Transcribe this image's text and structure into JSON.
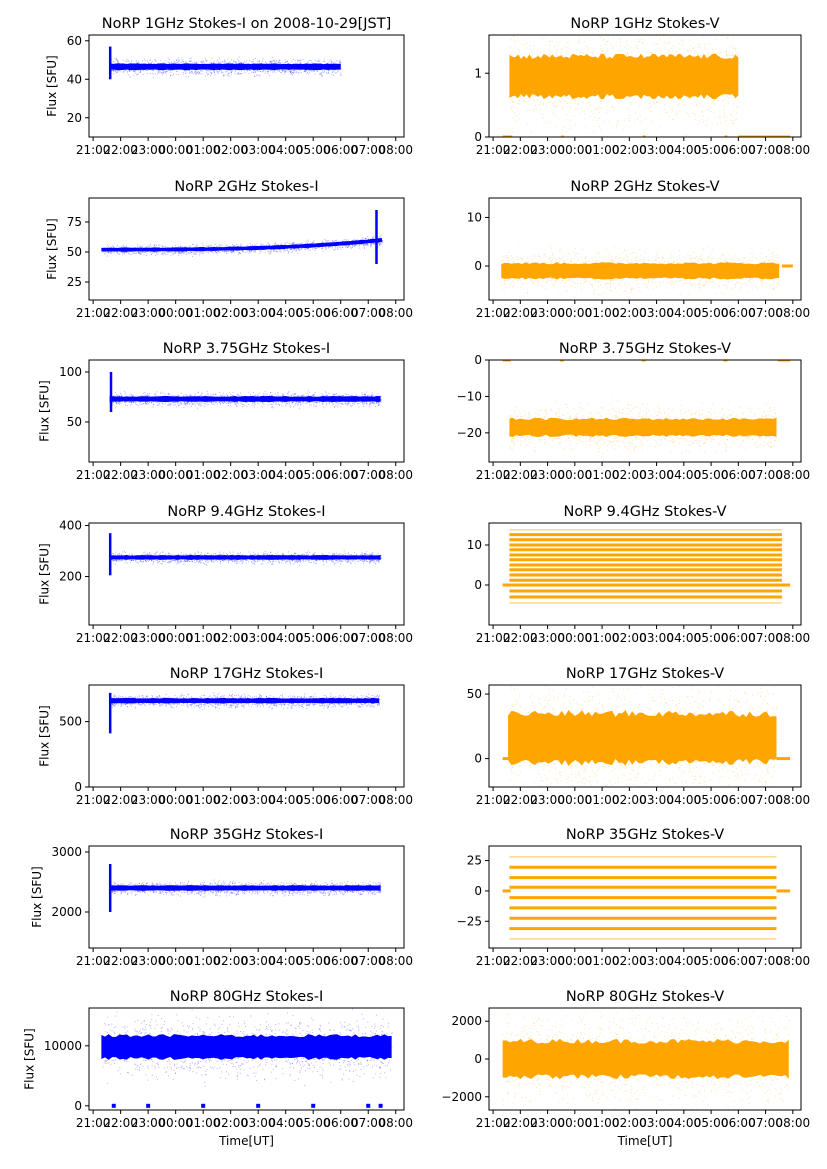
{
  "figure": {
    "title_prefix": "NoRP",
    "date_note": "on 2008-10-29[JST]",
    "xlabel": "Time[UT]",
    "ylabel": "Flux [SFU]",
    "colors": {
      "stokes_i": "#0000ff",
      "stokes_v": "#ffa500"
    }
  },
  "chart_data": [
    {
      "type": "scatter",
      "title": "NoRP 1GHz Stokes-I on 2008-10-29[JST]",
      "xlabel": "",
      "ylabel": "Flux [SFU]",
      "ylim": [
        10,
        63
      ],
      "yticks": [
        20,
        40,
        60
      ],
      "xticks": [
        "21:00",
        "22:00",
        "23:00",
        "00:00",
        "01:00",
        "02:00",
        "03:00",
        "04:00",
        "05:00",
        "06:00",
        "07:00",
        "08:00"
      ],
      "xlim_hours": [
        20.85,
        32.3
      ],
      "color": "#0000ff",
      "series": [
        {
          "name": "Stokes-I",
          "start": 21.6,
          "end": 30.0,
          "baseline": 46.5,
          "spread": 1.5,
          "spike": {
            "at": 21.62,
            "max": 57,
            "min": 40
          }
        }
      ]
    },
    {
      "type": "scatter",
      "title": "NoRP 1GHz Stokes-V",
      "xlabel": "",
      "ylabel": "",
      "ylim": [
        0,
        1.6
      ],
      "yticks": [
        0,
        1
      ],
      "xticks": [
        "21:00",
        "22:00",
        "23:00",
        "00:00",
        "01:00",
        "02:00",
        "03:00",
        "04:00",
        "05:00",
        "06:00",
        "07:00",
        "08:00"
      ],
      "xlim_hours": [
        20.85,
        32.3
      ],
      "color": "#ffa500",
      "series": [
        {
          "name": "Stokes-V",
          "start": 21.6,
          "end": 30.0,
          "baseline": 0.95,
          "spread": 0.3
        }
      ],
      "zero_segments": [
        [
          21.35,
          21.7
        ],
        [
          23.5,
          23.6
        ],
        [
          26.5,
          26.6
        ],
        [
          29.5,
          29.6
        ],
        [
          30.0,
          31.9
        ]
      ]
    },
    {
      "type": "scatter",
      "title": "NoRP 2GHz Stokes-I",
      "xlabel": "",
      "ylabel": "Flux [SFU]",
      "ylim": [
        10,
        95
      ],
      "yticks": [
        25,
        50,
        75
      ],
      "xticks": [
        "21:00",
        "22:00",
        "23:00",
        "00:00",
        "01:00",
        "02:00",
        "03:00",
        "04:00",
        "05:00",
        "06:00",
        "07:00",
        "08:00"
      ],
      "xlim_hours": [
        20.85,
        32.3
      ],
      "color": "#0000ff",
      "series": [
        {
          "name": "Stokes-I",
          "start": 21.3,
          "end": 31.5,
          "baseline": 52,
          "baseline_end": 60,
          "spread": 1.5,
          "spike": {
            "at": 31.3,
            "max": 85,
            "min": 40
          }
        }
      ]
    },
    {
      "type": "scatter",
      "title": "NoRP 2GHz Stokes-V",
      "xlabel": "",
      "ylabel": "",
      "ylim": [
        -7,
        14
      ],
      "yticks": [
        0,
        10
      ],
      "xticks": [
        "21:00",
        "22:00",
        "23:00",
        "00:00",
        "01:00",
        "02:00",
        "03:00",
        "04:00",
        "05:00",
        "06:00",
        "07:00",
        "08:00"
      ],
      "xlim_hours": [
        20.85,
        32.3
      ],
      "color": "#ffa500",
      "series": [
        {
          "name": "Stokes-V",
          "start": 21.3,
          "end": 31.5,
          "baseline": -1,
          "spread": 1.5
        }
      ],
      "zero_segments": [
        [
          31.6,
          32.0
        ]
      ]
    },
    {
      "type": "scatter",
      "title": "NoRP 3.75GHz Stokes-I",
      "xlabel": "",
      "ylabel": "Flux [SFU]",
      "ylim": [
        10,
        112
      ],
      "yticks": [
        50,
        100
      ],
      "xticks": [
        "21:00",
        "22:00",
        "23:00",
        "00:00",
        "01:00",
        "02:00",
        "03:00",
        "04:00",
        "05:00",
        "06:00",
        "07:00",
        "08:00"
      ],
      "xlim_hours": [
        20.85,
        32.3
      ],
      "color": "#0000ff",
      "series": [
        {
          "name": "Stokes-I",
          "start": 21.6,
          "end": 31.45,
          "baseline": 73,
          "spread": 2.5,
          "spike": {
            "at": 21.65,
            "max": 100,
            "min": 60
          }
        }
      ]
    },
    {
      "type": "scatter",
      "title": "NoRP 3.75GHz Stokes-V",
      "xlabel": "",
      "ylabel": "",
      "ylim": [
        -28,
        0
      ],
      "yticks": [
        -20,
        -10,
        0
      ],
      "xticks": [
        "21:00",
        "22:00",
        "23:00",
        "00:00",
        "01:00",
        "02:00",
        "03:00",
        "04:00",
        "05:00",
        "06:00",
        "07:00",
        "08:00"
      ],
      "xlim_hours": [
        20.85,
        32.3
      ],
      "color": "#ffa500",
      "series": [
        {
          "name": "Stokes-V",
          "start": 21.6,
          "end": 31.4,
          "baseline": -18.5,
          "spread": 2.2
        }
      ],
      "zero_segments": [
        [
          21.35,
          21.65
        ],
        [
          23.45,
          23.6
        ],
        [
          26.45,
          26.6
        ],
        [
          29.45,
          29.6
        ],
        [
          31.45,
          31.9
        ]
      ]
    },
    {
      "type": "scatter",
      "title": "NoRP 9.4GHz Stokes-I",
      "xlabel": "",
      "ylabel": "Flux [SFU]",
      "ylim": [
        10,
        410
      ],
      "yticks": [
        200,
        400
      ],
      "xticks": [
        "21:00",
        "22:00",
        "23:00",
        "00:00",
        "01:00",
        "02:00",
        "03:00",
        "04:00",
        "05:00",
        "06:00",
        "07:00",
        "08:00"
      ],
      "xlim_hours": [
        20.85,
        32.3
      ],
      "color": "#0000ff",
      "series": [
        {
          "name": "Stokes-I",
          "start": 21.6,
          "end": 31.45,
          "baseline": 275,
          "spread": 8,
          "spike": {
            "at": 21.62,
            "max": 370,
            "min": 205
          }
        }
      ]
    },
    {
      "type": "scatter",
      "title": "NoRP 9.4GHz Stokes-V",
      "xlabel": "",
      "ylabel": "",
      "ylim": [
        -10,
        15.5
      ],
      "yticks": [
        0,
        10
      ],
      "xticks": [
        "21:00",
        "22:00",
        "23:00",
        "00:00",
        "01:00",
        "02:00",
        "03:00",
        "04:00",
        "05:00",
        "06:00",
        "07:00",
        "08:00"
      ],
      "xlim_hours": [
        20.85,
        32.3
      ],
      "color": "#ffa500",
      "series": [
        {
          "name": "Stokes-V",
          "start": 21.6,
          "end": 31.6,
          "quantized_levels": [
            -4.5,
            -3,
            -1.5,
            0,
            1.2,
            2.5,
            3.8,
            5,
            6.3,
            7.5,
            8.8,
            10,
            11.3,
            12.6,
            13.8
          ]
        }
      ],
      "zero_segments": [
        [
          21.35,
          21.65
        ],
        [
          31.5,
          31.9
        ]
      ]
    },
    {
      "type": "scatter",
      "title": "NoRP 17GHz Stokes-I",
      "xlabel": "",
      "ylabel": "Flux [SFU]",
      "ylim": [
        0,
        780
      ],
      "yticks": [
        0,
        500
      ],
      "xticks": [
        "21:00",
        "22:00",
        "23:00",
        "00:00",
        "01:00",
        "02:00",
        "03:00",
        "04:00",
        "05:00",
        "06:00",
        "07:00",
        "08:00"
      ],
      "xlim_hours": [
        20.85,
        32.3
      ],
      "color": "#0000ff",
      "series": [
        {
          "name": "Stokes-I",
          "start": 21.6,
          "end": 31.4,
          "baseline": 660,
          "spread": 18,
          "spike": {
            "at": 21.62,
            "max": 720,
            "min": 410
          }
        }
      ]
    },
    {
      "type": "scatter",
      "title": "NoRP 17GHz Stokes-V",
      "xlabel": "",
      "ylabel": "",
      "ylim": [
        -22,
        57
      ],
      "yticks": [
        0,
        50
      ],
      "xticks": [
        "21:00",
        "22:00",
        "23:00",
        "00:00",
        "01:00",
        "02:00",
        "03:00",
        "04:00",
        "05:00",
        "06:00",
        "07:00",
        "08:00"
      ],
      "xlim_hours": [
        20.85,
        32.3
      ],
      "color": "#ffa500",
      "series": [
        {
          "name": "Stokes-V",
          "start": 21.55,
          "end": 31.4,
          "baseline": 16,
          "spread": 18
        }
      ],
      "zero_segments": [
        [
          21.35,
          21.6
        ],
        [
          31.4,
          31.9
        ]
      ]
    },
    {
      "type": "scatter",
      "title": "NoRP 35GHz Stokes-I",
      "xlabel": "",
      "ylabel": "Flux [SFU]",
      "ylim": [
        1400,
        3100
      ],
      "yticks": [
        2000,
        3000
      ],
      "xticks": [
        "21:00",
        "22:00",
        "23:00",
        "00:00",
        "01:00",
        "02:00",
        "03:00",
        "04:00",
        "05:00",
        "06:00",
        "07:00",
        "08:00"
      ],
      "xlim_hours": [
        20.85,
        32.3
      ],
      "color": "#0000ff",
      "series": [
        {
          "name": "Stokes-I",
          "start": 21.6,
          "end": 31.45,
          "baseline": 2400,
          "spread": 40,
          "spike": {
            "at": 21.62,
            "max": 2800,
            "min": 2000
          }
        }
      ]
    },
    {
      "type": "scatter",
      "title": "NoRP 35GHz Stokes-V",
      "xlabel": "",
      "ylabel": "",
      "ylim": [
        -47,
        37
      ],
      "yticks": [
        -25,
        0,
        25
      ],
      "xticks": [
        "21:00",
        "22:00",
        "23:00",
        "00:00",
        "01:00",
        "02:00",
        "03:00",
        "04:00",
        "05:00",
        "06:00",
        "07:00",
        "08:00"
      ],
      "xlim_hours": [
        20.85,
        32.3
      ],
      "color": "#ffa500",
      "series": [
        {
          "name": "Stokes-V",
          "start": 21.6,
          "end": 31.4,
          "quantized_levels": [
            -39.5,
            -31,
            -22.5,
            -14,
            -5.5,
            3,
            11,
            19.5,
            28
          ]
        }
      ],
      "zero_segments": [
        [
          21.35,
          21.65
        ],
        [
          31.4,
          31.9
        ]
      ]
    },
    {
      "type": "scatter",
      "title": "NoRP 80GHz Stokes-I",
      "xlabel": "Time[UT]",
      "ylabel": "Flux [SFU]",
      "ylim": [
        -700,
        16300
      ],
      "yticks": [
        0,
        10000
      ],
      "xticks": [
        "21:00",
        "22:00",
        "23:00",
        "00:00",
        "01:00",
        "02:00",
        "03:00",
        "04:00",
        "05:00",
        "06:00",
        "07:00",
        "08:00"
      ],
      "xlim_hours": [
        20.85,
        32.3
      ],
      "color": "#0000ff",
      "series": [
        {
          "name": "Stokes-I",
          "start": 21.3,
          "end": 31.85,
          "baseline": 9800,
          "spread": 1800
        }
      ],
      "zero_markers": [
        21.75,
        23.0,
        25.0,
        27.0,
        29.0,
        31.0,
        31.45
      ]
    },
    {
      "type": "scatter",
      "title": "NoRP 80GHz Stokes-V",
      "xlabel": "Time[UT]",
      "ylabel": "",
      "ylim": [
        -2700,
        2700
      ],
      "yticks": [
        -2000,
        0,
        2000
      ],
      "xticks": [
        "21:00",
        "22:00",
        "23:00",
        "00:00",
        "01:00",
        "02:00",
        "03:00",
        "04:00",
        "05:00",
        "06:00",
        "07:00",
        "08:00"
      ],
      "xlim_hours": [
        20.85,
        32.3
      ],
      "color": "#ffa500",
      "series": [
        {
          "name": "Stokes-V",
          "start": 21.35,
          "end": 31.85,
          "baseline": 0,
          "spread": 900
        }
      ]
    }
  ]
}
